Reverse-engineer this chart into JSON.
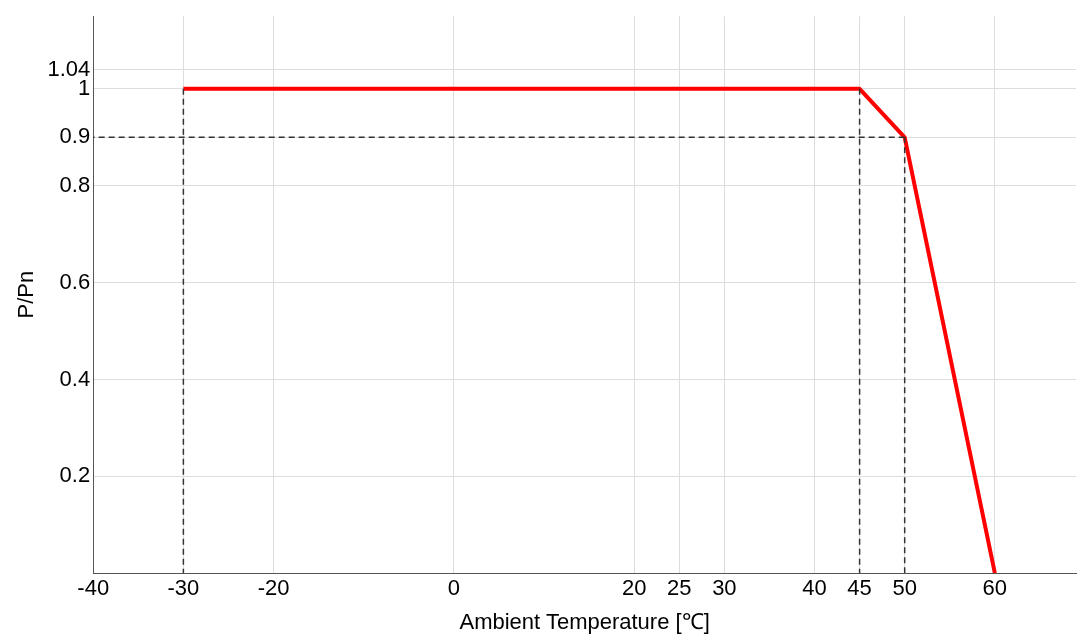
{
  "chart_data": {
    "type": "line",
    "xlabel": "Ambient Temperature [℃]",
    "ylabel": "P/Pn",
    "x": [
      -30,
      45,
      50,
      60
    ],
    "series": [
      {
        "color": "#ff0000",
        "values": [
          1,
          1,
          0.9,
          0
        ]
      },
      {
        "x": [
          -30,
          -30
        ],
        "values": [
          1,
          0
        ],
        "color": "#333333",
        "line_style": "dashed"
      },
      {
        "x": [
          45,
          45
        ],
        "values": [
          1,
          0
        ],
        "color": "#333333",
        "line_style": "dashed"
      },
      {
        "x": [
          50,
          50
        ],
        "values": [
          0.9,
          0
        ],
        "color": "#333333",
        "line_style": "dashed"
      },
      {
        "x": [
          50,
          -40
        ],
        "values": [
          0.9,
          0.9
        ],
        "color": "#333333",
        "line_style": "dashed"
      }
    ],
    "xlim": [
      -40,
      69
    ],
    "xticks": [
      -40,
      -30,
      -20,
      0,
      20,
      25,
      30,
      40,
      45,
      50,
      60
    ],
    "ylim": [
      0,
      1.15
    ],
    "yticks": [
      0.2,
      0.4,
      0.6,
      0.8,
      0.9,
      1,
      1.04
    ],
    "grid": true,
    "legend": false,
    "marker": "none",
    "line_style": "solid"
  }
}
